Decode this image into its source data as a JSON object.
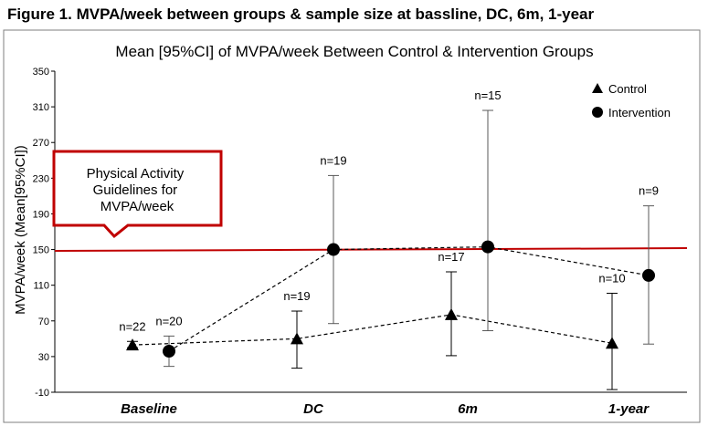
{
  "figure_title": "Figure 1. MVPA/week between groups & sample size at bassline, DC, 6m, 1-year",
  "colors": {
    "guideline": "#c00000",
    "marker": "#000000",
    "errorbar_control": "#000000",
    "errorbar_intervention": "#595959"
  },
  "chart_data": {
    "type": "scatter",
    "title": "Mean [95%CI] of MVPA/week Between Control & Intervention Groups",
    "xlabel": "",
    "ylabel": "MVPA/week (Mean[95%CI])",
    "ylim": [
      -10,
      350
    ],
    "yticks": [
      -10,
      30,
      70,
      110,
      150,
      190,
      230,
      270,
      310,
      350
    ],
    "categories": [
      "Baseline",
      "DC",
      "6m",
      "1-year"
    ],
    "legend_position": "top-right",
    "grid": false,
    "series": [
      {
        "name": "Control",
        "marker": "triangle",
        "mean": [
          43,
          50,
          77,
          45
        ],
        "ci_low": [
          40,
          17,
          31,
          -7
        ],
        "ci_high": [
          47,
          81,
          125,
          101
        ],
        "n_labels": [
          "n=22",
          "n=19",
          "n=17",
          "n=10"
        ]
      },
      {
        "name": "Intervention",
        "marker": "circle",
        "mean": [
          36,
          150,
          153,
          121
        ],
        "ci_low": [
          19,
          67,
          59,
          44
        ],
        "ci_high": [
          53,
          233,
          306,
          199
        ],
        "n_labels": [
          "n=20",
          "n=19",
          "n=15",
          "n=9"
        ]
      }
    ],
    "reference_line": {
      "value": 150,
      "label": "Physical Activity Guidelines for MVPA/week"
    }
  }
}
